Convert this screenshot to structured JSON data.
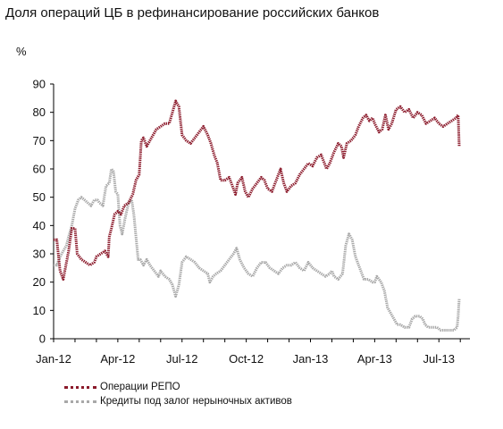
{
  "title": "Доля операций ЦБ в рефинансирование российских банков",
  "chart_data": {
    "type": "line",
    "title": "Доля операций ЦБ в рефинансирование российских банков",
    "ylabel": "%",
    "xlabel": "",
    "ylim": [
      0,
      90
    ],
    "yticks": [
      "90",
      "80",
      "70",
      "60",
      "50",
      "40",
      "30",
      "20",
      "10",
      "0"
    ],
    "xticks": [
      {
        "label": "Jan-12",
        "t": 0
      },
      {
        "label": "Apr-12",
        "t": 3
      },
      {
        "label": "Jul-12",
        "t": 6
      },
      {
        "label": "Oct-12",
        "t": 9
      },
      {
        "label": "Jan-13",
        "t": 12
      },
      {
        "label": "Apr-13",
        "t": 15
      },
      {
        "label": "Jul-13",
        "t": 18
      }
    ],
    "x_range": [
      0,
      19.2
    ],
    "grid": false,
    "legend": "bottom-left",
    "series": [
      {
        "name": "Операции РЕПО",
        "color": "#8b1a2b",
        "points": [
          [
            0.0,
            35
          ],
          [
            0.15,
            35
          ],
          [
            0.3,
            24
          ],
          [
            0.45,
            21
          ],
          [
            0.55,
            25
          ],
          [
            0.7,
            31
          ],
          [
            0.85,
            39
          ],
          [
            1.0,
            39
          ],
          [
            1.1,
            30
          ],
          [
            1.3,
            28
          ],
          [
            1.5,
            27
          ],
          [
            1.7,
            26
          ],
          [
            1.9,
            27
          ],
          [
            2.0,
            29
          ],
          [
            2.2,
            30
          ],
          [
            2.4,
            31
          ],
          [
            2.55,
            29
          ],
          [
            2.6,
            36
          ],
          [
            2.7,
            39
          ],
          [
            2.85,
            44
          ],
          [
            3.0,
            45
          ],
          [
            3.15,
            44
          ],
          [
            3.3,
            47
          ],
          [
            3.5,
            48
          ],
          [
            3.7,
            51
          ],
          [
            3.85,
            56
          ],
          [
            4.0,
            58
          ],
          [
            4.1,
            70
          ],
          [
            4.2,
            71
          ],
          [
            4.35,
            68
          ],
          [
            4.5,
            70
          ],
          [
            4.65,
            72
          ],
          [
            4.8,
            74
          ],
          [
            5.0,
            75
          ],
          [
            5.2,
            76
          ],
          [
            5.4,
            76
          ],
          [
            5.55,
            80
          ],
          [
            5.7,
            84
          ],
          [
            5.85,
            82
          ],
          [
            6.0,
            72
          ],
          [
            6.2,
            70
          ],
          [
            6.4,
            69
          ],
          [
            6.6,
            71
          ],
          [
            6.8,
            73
          ],
          [
            7.0,
            75
          ],
          [
            7.2,
            72
          ],
          [
            7.35,
            69
          ],
          [
            7.5,
            65
          ],
          [
            7.65,
            62
          ],
          [
            7.8,
            56
          ],
          [
            8.0,
            56
          ],
          [
            8.2,
            57
          ],
          [
            8.4,
            53
          ],
          [
            8.5,
            51
          ],
          [
            8.6,
            55
          ],
          [
            8.8,
            57
          ],
          [
            8.95,
            52
          ],
          [
            9.1,
            50
          ],
          [
            9.3,
            53
          ],
          [
            9.5,
            55
          ],
          [
            9.7,
            57
          ],
          [
            9.85,
            56
          ],
          [
            10.0,
            53
          ],
          [
            10.2,
            52
          ],
          [
            10.4,
            56
          ],
          [
            10.6,
            60
          ],
          [
            10.75,
            55
          ],
          [
            10.9,
            52
          ],
          [
            11.1,
            54
          ],
          [
            11.3,
            55
          ],
          [
            11.5,
            58
          ],
          [
            11.7,
            60
          ],
          [
            11.9,
            62
          ],
          [
            12.1,
            61
          ],
          [
            12.3,
            64
          ],
          [
            12.5,
            65
          ],
          [
            12.6,
            63
          ],
          [
            12.75,
            60
          ],
          [
            12.9,
            62
          ],
          [
            13.1,
            66
          ],
          [
            13.3,
            69
          ],
          [
            13.45,
            68
          ],
          [
            13.55,
            64
          ],
          [
            13.7,
            69
          ],
          [
            13.9,
            70
          ],
          [
            14.1,
            72
          ],
          [
            14.25,
            75
          ],
          [
            14.45,
            78
          ],
          [
            14.6,
            79
          ],
          [
            14.75,
            77
          ],
          [
            14.9,
            78
          ],
          [
            15.0,
            76
          ],
          [
            15.2,
            73
          ],
          [
            15.35,
            74
          ],
          [
            15.5,
            79
          ],
          [
            15.65,
            74
          ],
          [
            15.8,
            76
          ],
          [
            16.0,
            81
          ],
          [
            16.2,
            82
          ],
          [
            16.4,
            80
          ],
          [
            16.6,
            81
          ],
          [
            16.8,
            78
          ],
          [
            17.0,
            80
          ],
          [
            17.2,
            79
          ],
          [
            17.4,
            76
          ],
          [
            17.6,
            77
          ],
          [
            17.8,
            78
          ],
          [
            18.0,
            76
          ],
          [
            18.2,
            75
          ],
          [
            18.4,
            76
          ],
          [
            18.6,
            77
          ],
          [
            18.8,
            78
          ],
          [
            18.9,
            79
          ],
          [
            18.95,
            68
          ]
        ]
      },
      {
        "name": "Кредиты под залог нерыночных активов",
        "color": "#a8a8a8",
        "points": [
          [
            0.0,
            26
          ],
          [
            0.15,
            26
          ],
          [
            0.3,
            29
          ],
          [
            0.45,
            31
          ],
          [
            0.6,
            33
          ],
          [
            0.7,
            36
          ],
          [
            0.85,
            40
          ],
          [
            1.0,
            46
          ],
          [
            1.15,
            49
          ],
          [
            1.3,
            50
          ],
          [
            1.45,
            49
          ],
          [
            1.6,
            48
          ],
          [
            1.75,
            47
          ],
          [
            1.9,
            49
          ],
          [
            2.05,
            49
          ],
          [
            2.15,
            48
          ],
          [
            2.3,
            47
          ],
          [
            2.45,
            54
          ],
          [
            2.6,
            55
          ],
          [
            2.7,
            60
          ],
          [
            2.8,
            59
          ],
          [
            2.9,
            52
          ],
          [
            3.0,
            51
          ],
          [
            3.1,
            40
          ],
          [
            3.2,
            37
          ],
          [
            3.35,
            43
          ],
          [
            3.5,
            48
          ],
          [
            3.65,
            49
          ],
          [
            3.75,
            44
          ],
          [
            3.85,
            36
          ],
          [
            3.95,
            28
          ],
          [
            4.05,
            28
          ],
          [
            4.2,
            26
          ],
          [
            4.35,
            28
          ],
          [
            4.5,
            26
          ],
          [
            4.7,
            24
          ],
          [
            4.9,
            22
          ],
          [
            5.0,
            24
          ],
          [
            5.2,
            22
          ],
          [
            5.4,
            21
          ],
          [
            5.55,
            19
          ],
          [
            5.7,
            15
          ],
          [
            5.85,
            19
          ],
          [
            6.0,
            27
          ],
          [
            6.2,
            29
          ],
          [
            6.4,
            28
          ],
          [
            6.6,
            27
          ],
          [
            6.8,
            25
          ],
          [
            7.0,
            24
          ],
          [
            7.2,
            23
          ],
          [
            7.3,
            20
          ],
          [
            7.45,
            22
          ],
          [
            7.6,
            23
          ],
          [
            7.8,
            24
          ],
          [
            8.0,
            26
          ],
          [
            8.2,
            28
          ],
          [
            8.4,
            30
          ],
          [
            8.55,
            32
          ],
          [
            8.7,
            28
          ],
          [
            8.9,
            25
          ],
          [
            9.1,
            23
          ],
          [
            9.3,
            22
          ],
          [
            9.5,
            25
          ],
          [
            9.7,
            27
          ],
          [
            9.9,
            27
          ],
          [
            10.1,
            25
          ],
          [
            10.3,
            24
          ],
          [
            10.5,
            23
          ],
          [
            10.7,
            25
          ],
          [
            10.9,
            26
          ],
          [
            11.1,
            26
          ],
          [
            11.3,
            27
          ],
          [
            11.5,
            25
          ],
          [
            11.7,
            24
          ],
          [
            11.9,
            27
          ],
          [
            12.1,
            25
          ],
          [
            12.3,
            24
          ],
          [
            12.5,
            23
          ],
          [
            12.7,
            22
          ],
          [
            12.9,
            23
          ],
          [
            13.0,
            24
          ],
          [
            13.1,
            22
          ],
          [
            13.3,
            21
          ],
          [
            13.5,
            23
          ],
          [
            13.65,
            33
          ],
          [
            13.8,
            37
          ],
          [
            13.95,
            35
          ],
          [
            14.1,
            29
          ],
          [
            14.3,
            25
          ],
          [
            14.5,
            21
          ],
          [
            14.7,
            21
          ],
          [
            14.9,
            20
          ],
          [
            15.0,
            20
          ],
          [
            15.1,
            22
          ],
          [
            15.3,
            20
          ],
          [
            15.45,
            17
          ],
          [
            15.6,
            11
          ],
          [
            15.75,
            9
          ],
          [
            15.9,
            7
          ],
          [
            16.05,
            5
          ],
          [
            16.2,
            5
          ],
          [
            16.4,
            4
          ],
          [
            16.6,
            4
          ],
          [
            16.75,
            7
          ],
          [
            16.9,
            8
          ],
          [
            17.1,
            8
          ],
          [
            17.25,
            7
          ],
          [
            17.35,
            5
          ],
          [
            17.5,
            4
          ],
          [
            17.7,
            4
          ],
          [
            17.9,
            4
          ],
          [
            18.1,
            3
          ],
          [
            18.3,
            3
          ],
          [
            18.5,
            3
          ],
          [
            18.7,
            3
          ],
          [
            18.85,
            4
          ],
          [
            18.9,
            8
          ],
          [
            18.95,
            14
          ]
        ]
      }
    ]
  }
}
